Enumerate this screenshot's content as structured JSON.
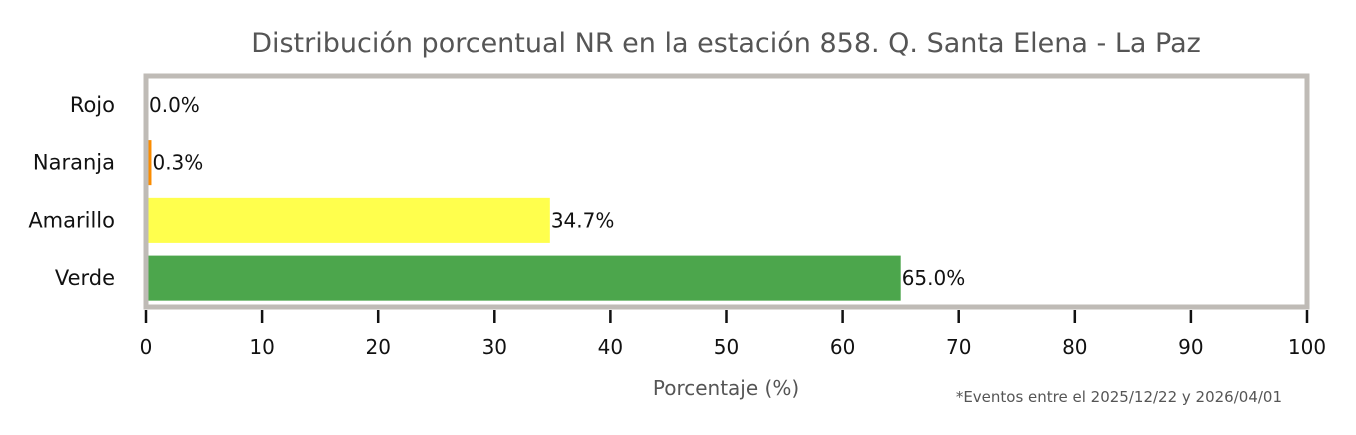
{
  "chart_data": {
    "type": "bar",
    "orientation": "horizontal",
    "title": "Distribución porcentual NR en la estación 858. Q. Santa Elena - La Paz",
    "categories": [
      "Rojo",
      "Naranja",
      "Amarillo",
      "Verde"
    ],
    "values": [
      0.0,
      0.3,
      34.7,
      65.0
    ],
    "value_labels": [
      "0.0%",
      "0.3%",
      "34.7%",
      "65.0%"
    ],
    "colors": [
      "#e53935",
      "#fb8c00",
      "#ffff4d",
      "#4ca64c"
    ],
    "xlabel": "Porcentaje (%)",
    "ylabel": "",
    "xlim": [
      0,
      100
    ],
    "xticks": [
      0,
      10,
      20,
      30,
      40,
      50,
      60,
      70,
      80,
      90,
      100
    ],
    "grid": false,
    "frame_color": "#bfbbb6",
    "footnote": "*Eventos entre el 2025/12/22 y 2026/04/01"
  }
}
